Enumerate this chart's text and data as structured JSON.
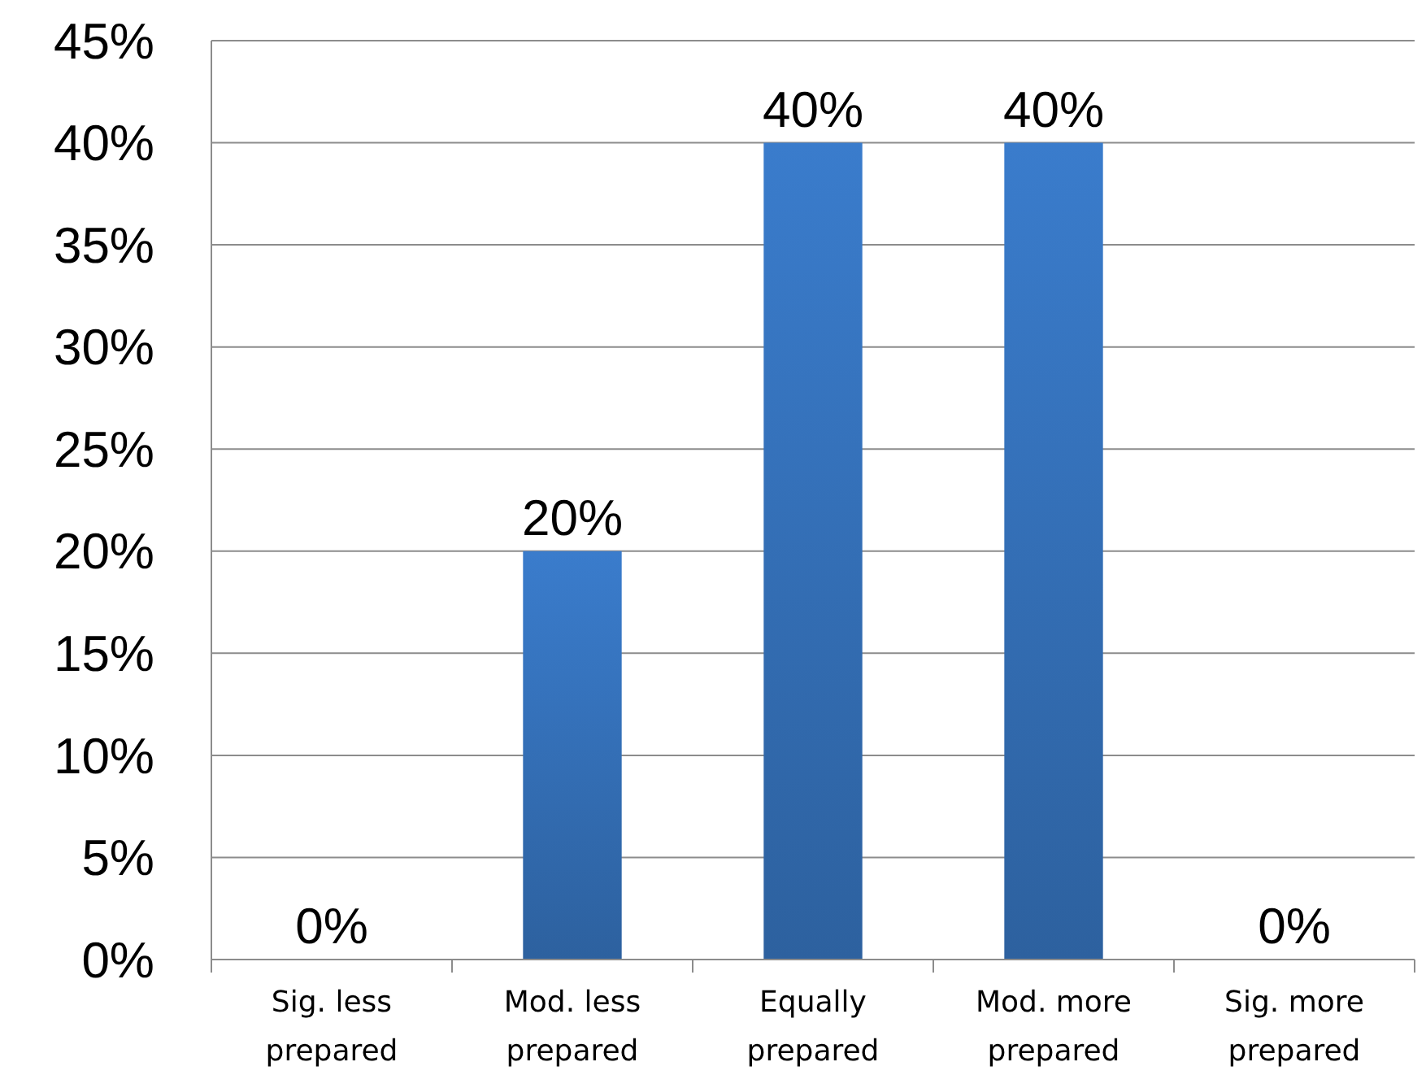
{
  "chart_data": {
    "type": "bar",
    "categories": [
      "Sig. less prepared",
      "Mod. less prepared",
      "Equally prepared",
      "Mod. more prepared",
      "Sig. more prepared"
    ],
    "values": [
      0,
      20,
      40,
      40,
      0
    ],
    "value_labels": [
      "0%",
      "20%",
      "40%",
      "40%",
      "0%"
    ],
    "color": "#3a7ccc",
    "ylim": [
      0,
      45
    ],
    "yticks": [
      {
        "value": 0,
        "label": "0%"
      },
      {
        "value": 5,
        "label": "5%"
      },
      {
        "value": 10,
        "label": "10%"
      },
      {
        "value": 15,
        "label": "15%"
      },
      {
        "value": 20,
        "label": "20%"
      },
      {
        "value": 25,
        "label": "25%"
      },
      {
        "value": 30,
        "label": "30%"
      },
      {
        "value": 35,
        "label": "35%"
      },
      {
        "value": 40,
        "label": "40%"
      },
      {
        "value": 45,
        "label": "45%"
      }
    ],
    "grid": "y"
  }
}
